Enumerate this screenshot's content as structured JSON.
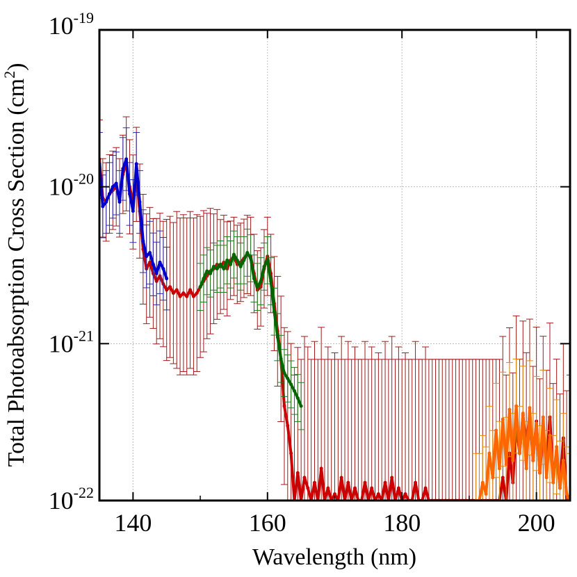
{
  "chart_data": {
    "type": "line",
    "title": "",
    "xlabel": "Wavelength (nm)",
    "ylabel_main": "Total Photoabsorption Cross Section (cm",
    "ylabel_sup": "2",
    "ylabel_end": ")",
    "xlim": [
      135,
      205
    ],
    "ylim": [
      1e-22,
      1e-19
    ],
    "yscale": "log",
    "grid": true,
    "x_ticks": [
      {
        "value": 140,
        "label": "140"
      },
      {
        "value": 160,
        "label": "160"
      },
      {
        "value": 180,
        "label": "180"
      },
      {
        "value": 200,
        "label": "200"
      }
    ],
    "y_ticks": [
      {
        "value": 1e-22,
        "base": "10",
        "exp": "-22"
      },
      {
        "value": 1e-21,
        "base": "10",
        "exp": "-21"
      },
      {
        "value": 1e-20,
        "base": "10",
        "exp": "-20"
      },
      {
        "value": 1e-19,
        "base": "10",
        "exp": "-19"
      }
    ],
    "series": [
      {
        "name": "red",
        "color": "#cc0000",
        "errcolor": "#a01818",
        "x": [
          135,
          135.5,
          136,
          136.5,
          137,
          137.5,
          138,
          138.5,
          139,
          139.5,
          140,
          140.5,
          141,
          141.5,
          142,
          142.5,
          143,
          143.5,
          144,
          144.5,
          145,
          145.5,
          146,
          146.5,
          147,
          147.5,
          148,
          148.5,
          149,
          149.5,
          150,
          150.5,
          151,
          151.5,
          152,
          152.5,
          153,
          153.5,
          154,
          154.5,
          155,
          155.5,
          156,
          156.5,
          157,
          157.5,
          158,
          158.5,
          159,
          159.5,
          160,
          160.5,
          161,
          161.5,
          162,
          162.5,
          163,
          163.5,
          164,
          164.5,
          165,
          165.5,
          166,
          166.5,
          167,
          167.5,
          168,
          168.5,
          169,
          169.5,
          170,
          170.5,
          171,
          171.5,
          172,
          172.5,
          173,
          173.5,
          174,
          174.5,
          175,
          175.5,
          176,
          176.5,
          177,
          177.5,
          178,
          178.5,
          179,
          179.5,
          180,
          180.5,
          181,
          181.5,
          182,
          182.5,
          183,
          183.5,
          184,
          184.5,
          185,
          185.5,
          186,
          186.5,
          187,
          187.5,
          188,
          188.5,
          189,
          189.5,
          190,
          190.5,
          191,
          191.5,
          192,
          192.5,
          193,
          193.5,
          194,
          194.5,
          195,
          195.5,
          196,
          196.5,
          197,
          197.5,
          198,
          198.5,
          199,
          199.5,
          200,
          200.5,
          201,
          201.5,
          202,
          202.5,
          203,
          203.5,
          204,
          204.5,
          205
        ],
        "y": [
          1.5e-20,
          8.5e-21,
          8e-21,
          9e-21,
          9.5e-21,
          1e-20,
          8.5e-21,
          1.2e-20,
          1.4e-20,
          1e-20,
          8e-21,
          1.2e-20,
          7e-21,
          4e-21,
          3e-21,
          3.3e-21,
          2.8e-21,
          2.5e-21,
          2.7e-21,
          2.4e-21,
          2.2e-21,
          2.3e-21,
          2.1e-21,
          2.2e-21,
          2e-21,
          2.1e-21,
          2e-21,
          2.2e-21,
          2e-21,
          2.1e-21,
          2.3e-21,
          2.5e-21,
          2.7e-21,
          2.9e-21,
          3e-21,
          3.2e-21,
          3.1e-21,
          3.3e-21,
          3e-21,
          3.4e-21,
          3.6e-21,
          3.2e-21,
          3.3e-21,
          3.5e-21,
          3.7e-21,
          3.6e-21,
          2.8e-21,
          2.2e-21,
          2.3e-21,
          3e-21,
          3.6e-21,
          2.8e-21,
          1.8e-21,
          1.2e-21,
          8e-22,
          4e-22,
          3e-22,
          2e-22,
          1e-22,
          1.5e-22,
          1e-22,
          1.4e-22,
          1.2e-22,
          1e-22,
          1.3e-22,
          1e-22,
          1.6e-22,
          1e-22,
          1.2e-22,
          1e-22,
          1.1e-22,
          1e-22,
          1.4e-22,
          1e-22,
          1.3e-22,
          1e-22,
          1.2e-22,
          1e-22,
          1e-22,
          1.3e-22,
          1e-22,
          1.2e-22,
          1e-22,
          1.1e-22,
          1e-22,
          1.3e-22,
          1e-22,
          1.4e-22,
          1e-22,
          1.2e-22,
          1e-22,
          1.1e-22,
          1e-22,
          1e-22,
          1.3e-22,
          1e-22,
          1e-22,
          1.2e-22,
          1e-22,
          1e-22,
          1e-22,
          1e-22,
          1e-22,
          1e-22,
          1e-22,
          1e-22,
          1e-22,
          1e-22,
          1e-22,
          1e-22,
          1e-22,
          1e-22,
          1e-22,
          1e-22,
          1e-22,
          1e-22,
          1e-22,
          1e-22,
          1e-22,
          1e-22,
          1.4e-22,
          1e-22,
          2e-22,
          1.3e-22,
          3e-22,
          2e-22,
          3.5e-22,
          2.2e-22,
          3.6e-22,
          1.8e-22,
          3.2e-22,
          1.5e-22,
          2.8e-22,
          1.7e-22,
          3.4e-22,
          1.4e-22,
          2e-22,
          1.2e-22,
          2.5e-22,
          1e-22,
          1e-22
        ],
        "err": [
          0.25,
          0.25,
          0.25,
          0.25,
          0.25,
          0.25,
          0.25,
          0.25,
          0.3,
          0.3,
          0.3,
          0.3,
          0.3,
          0.35,
          0.35,
          0.35,
          0.35,
          0.4,
          0.4,
          0.4,
          0.45,
          0.45,
          0.45,
          0.5,
          0.5,
          0.5,
          0.5,
          0.5,
          0.5,
          0.5,
          0.45,
          0.45,
          0.4,
          0.4,
          0.35,
          0.35,
          0.3,
          0.3,
          0.3,
          0.25,
          0.25,
          0.25,
          0.25,
          0.25,
          0.25,
          0.25,
          0.25,
          0.25,
          0.25,
          0.25,
          0.25,
          0.25,
          0.3,
          0.35,
          0.4,
          0.5,
          0.6,
          0.7,
          0.8,
          0.8,
          0.9,
          0.9,
          0.9,
          0.9,
          0.9,
          0.9,
          0.9,
          0.9,
          0.9,
          0.9,
          0.9,
          0.9,
          0.9,
          0.9,
          0.9,
          0.9,
          0.9,
          0.9,
          0.9,
          0.9,
          0.9,
          0.9,
          0.9,
          0.9,
          0.9,
          0.9,
          0.9,
          0.9,
          0.9,
          0.9,
          0.9,
          0.9,
          0.9,
          0.9,
          0.9,
          0.9,
          0.9,
          0.9,
          0.9,
          0.9,
          0.9,
          0.9,
          0.9,
          0.9,
          0.9,
          0.9,
          0.9,
          0.9,
          0.9,
          0.9,
          0.9,
          0.9,
          0.9,
          0.9,
          0.9,
          0.9,
          0.9,
          0.9,
          0.9,
          0.9,
          0.9,
          0.8,
          0.8,
          0.7,
          0.7,
          0.6,
          0.6,
          0.6,
          0.6,
          0.6,
          0.6,
          0.6,
          0.6,
          0.6,
          0.6,
          0.6,
          0.6,
          0.6,
          0.6,
          0.7,
          0.8
        ]
      },
      {
        "name": "blue",
        "color": "#0000cc",
        "errcolor": "#2a2aa8",
        "x": [
          135,
          135.5,
          136,
          136.5,
          137,
          137.5,
          138,
          138.5,
          139,
          139.5,
          140,
          140.5,
          141,
          141.5,
          142,
          142.5,
          143,
          143.5,
          144,
          144.5,
          145
        ],
        "y": [
          1.4e-20,
          7.5e-21,
          8e-21,
          9e-21,
          1e-20,
          1.05e-20,
          8e-21,
          1.3e-20,
          1.5e-20,
          9e-21,
          7e-21,
          1.4e-20,
          8e-21,
          4.5e-21,
          3.6e-21,
          3.8e-21,
          3.2e-21,
          2.8e-21,
          3.3e-21,
          3e-21,
          2.6e-21
        ],
        "err": [
          0.2,
          0.2,
          0.2,
          0.2,
          0.2,
          0.2,
          0.2,
          0.2,
          0.2,
          0.2,
          0.2,
          0.2,
          0.2,
          0.2,
          0.2,
          0.2,
          0.2,
          0.2,
          0.2,
          0.2,
          0.2
        ]
      },
      {
        "name": "green",
        "color": "#006600",
        "errcolor": "#1f7a1f",
        "x": [
          150,
          150.5,
          151,
          151.5,
          152,
          152.5,
          153,
          153.5,
          154,
          154.5,
          155,
          155.5,
          156,
          156.5,
          157,
          157.5,
          158,
          158.5,
          159,
          159.5,
          160,
          160.5,
          161,
          161.5,
          162,
          162.5,
          163,
          163.5,
          164,
          164.5,
          165
        ],
        "y": [
          2.3e-21,
          2.6e-21,
          2.9e-21,
          2.8e-21,
          3.1e-21,
          3e-21,
          3.2e-21,
          3e-21,
          3.4e-21,
          3.2e-21,
          3.7e-21,
          3.4e-21,
          3.1e-21,
          3.4e-21,
          3.8e-21,
          3.5e-21,
          2.6e-21,
          2.3e-21,
          2.5e-21,
          3.1e-21,
          3.4e-21,
          2.5e-21,
          1.6e-21,
          1.1e-21,
          8e-22,
          6.5e-22,
          6e-22,
          5.5e-22,
          5e-22,
          4.5e-22,
          4e-22
        ],
        "err": [
          0.15,
          0.15,
          0.15,
          0.15,
          0.15,
          0.15,
          0.15,
          0.15,
          0.15,
          0.15,
          0.15,
          0.15,
          0.15,
          0.15,
          0.15,
          0.15,
          0.15,
          0.15,
          0.15,
          0.15,
          0.15,
          0.15,
          0.15,
          0.15,
          0.15,
          0.15,
          0.15,
          0.15,
          0.15,
          0.15,
          0.15
        ]
      },
      {
        "name": "orange",
        "color": "#ff6600",
        "errcolor": "#e08a10",
        "x": [
          191,
          191.5,
          192,
          192.5,
          193,
          193.5,
          194,
          194.5,
          195,
          195.5,
          196,
          196.5,
          197,
          197.5,
          198,
          198.5,
          199,
          199.5,
          200,
          200.5,
          201,
          201.5,
          202,
          202.5,
          203,
          203.5,
          204,
          204.5,
          205
        ],
        "y": [
          1e-22,
          1e-22,
          1.3e-22,
          1.1e-22,
          2e-22,
          1.4e-22,
          2.8e-22,
          1.6e-22,
          3.3e-22,
          1.7e-22,
          3.8e-22,
          1.8e-22,
          4e-22,
          2e-22,
          3.6e-22,
          1.6e-22,
          3.9e-22,
          1.8e-22,
          3.1e-22,
          1.5e-22,
          3.4e-22,
          1.4e-22,
          2.6e-22,
          1.3e-22,
          2.2e-22,
          1.2e-22,
          1.8e-22,
          1.1e-22,
          1e-22
        ],
        "err": [
          0.3,
          0.3,
          0.3,
          0.3,
          0.3,
          0.3,
          0.3,
          0.3,
          0.3,
          0.3,
          0.3,
          0.3,
          0.3,
          0.3,
          0.3,
          0.3,
          0.3,
          0.3,
          0.3,
          0.3,
          0.3,
          0.3,
          0.3,
          0.3,
          0.3,
          0.3,
          0.3,
          0.3,
          0.3
        ]
      }
    ]
  }
}
